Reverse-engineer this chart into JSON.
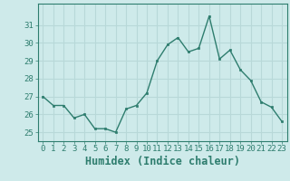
{
  "x": [
    0,
    1,
    2,
    3,
    4,
    5,
    6,
    7,
    8,
    9,
    10,
    11,
    12,
    13,
    14,
    15,
    16,
    17,
    18,
    19,
    20,
    21,
    22,
    23
  ],
  "y": [
    27.0,
    26.5,
    26.5,
    25.8,
    26.0,
    25.2,
    25.2,
    25.0,
    26.3,
    26.5,
    27.2,
    29.0,
    29.9,
    30.3,
    29.5,
    29.7,
    31.5,
    29.1,
    29.6,
    28.5,
    27.9,
    26.7,
    26.4,
    25.6
  ],
  "line_color": "#2e7d6e",
  "marker": "s",
  "marker_size": 2.0,
  "background_color": "#ceeaea",
  "grid_color": "#b8d8d8",
  "xlabel": "Humidex (Indice chaleur)",
  "ylim": [
    24.5,
    32.2
  ],
  "yticks": [
    25,
    26,
    27,
    28,
    29,
    30,
    31
  ],
  "xticks": [
    0,
    1,
    2,
    3,
    4,
    5,
    6,
    7,
    8,
    9,
    10,
    11,
    12,
    13,
    14,
    15,
    16,
    17,
    18,
    19,
    20,
    21,
    22,
    23
  ],
  "tick_label_fontsize": 6.5,
  "xlabel_fontsize": 8.5,
  "tick_color": "#2e7d6e",
  "axis_color": "#2e7d6e",
  "linewidth": 1.0
}
